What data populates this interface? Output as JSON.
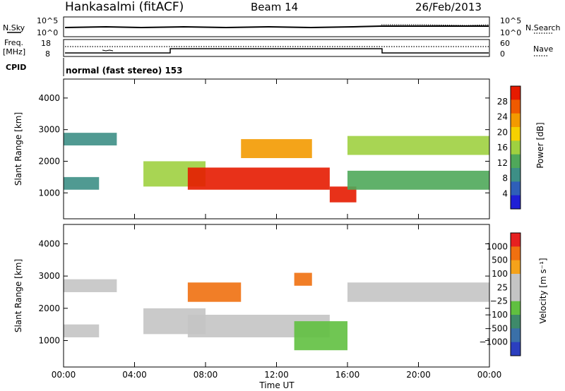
{
  "header": {
    "station": "Hankasalmi (fitACF)",
    "beam": "Beam 14",
    "date": "26/Feb/2013"
  },
  "status_panels": {
    "nsky_label": "N.Sky",
    "nsky_ticks": [
      "10^5",
      "10^0"
    ],
    "nsearch_label": "N.Search",
    "nsearch_ticks": [
      "10^5",
      "10^0"
    ],
    "freq_label": "Freq.",
    "freq_unit": "[MHz]",
    "freq_ticks": [
      "18",
      "8"
    ],
    "nave_label": "Nave",
    "nave_ticks": [
      "60",
      "0"
    ],
    "cpid_label": "CPID",
    "cpid_text": "normal (fast stereo) 153"
  },
  "colors": {
    "power_scale": [
      "#1f1fd6",
      "#2f5fb8",
      "#3d8f86",
      "#4fa85a",
      "#9fd040",
      "#f6d000",
      "#f39a00",
      "#ef5a00",
      "#e61b00"
    ],
    "velocity_scale": [
      "#2b3fbf",
      "#3a70a8",
      "#3e8a6a",
      "#60c040",
      "#c4c4c4",
      "#c4c4c4",
      "#f5a21a",
      "#f07010",
      "#e62020"
    ],
    "gray": "#c8c8c0"
  },
  "chart_data": [
    {
      "type": "heatmap",
      "name": "Power panel",
      "xlabel": "",
      "ylabel": "Slant Range [km]",
      "x_ticks": [
        "00:00",
        "04:00",
        "08:00",
        "12:00",
        "16:00",
        "20:00",
        "00:00"
      ],
      "xlim_hours": [
        0,
        24
      ],
      "y_ticks": [
        "4000",
        "3000",
        "2000",
        "1000"
      ],
      "ylim": [
        180,
        4600
      ],
      "colorbar_label": "Power [dB]",
      "colorbar_ticks": [
        "28",
        "24",
        "20",
        "16",
        "12",
        "8",
        "4"
      ],
      "bands": [
        {
          "start_h": 0.0,
          "end_h": 3.0,
          "range_low": 2500,
          "range_high": 2900,
          "level": 2
        },
        {
          "start_h": 0.0,
          "end_h": 2.0,
          "range_low": 1100,
          "range_high": 1500,
          "level": 2
        },
        {
          "start_h": 4.5,
          "end_h": 8.0,
          "range_low": 1200,
          "range_high": 2000,
          "level": 4
        },
        {
          "start_h": 7.0,
          "end_h": 15.0,
          "range_low": 1100,
          "range_high": 1800,
          "level": 8
        },
        {
          "start_h": 10.0,
          "end_h": 14.0,
          "range_low": 2100,
          "range_high": 2700,
          "level": 6
        },
        {
          "start_h": 15.0,
          "end_h": 16.5,
          "range_low": 700,
          "range_high": 1200,
          "level": 8
        },
        {
          "start_h": 16.0,
          "end_h": 24.0,
          "range_low": 1100,
          "range_high": 1700,
          "level": 3
        },
        {
          "start_h": 16.0,
          "end_h": 24.0,
          "range_low": 2200,
          "range_high": 2800,
          "level": 4
        }
      ]
    },
    {
      "type": "heatmap",
      "name": "Velocity panel",
      "xlabel": "Time UT",
      "ylabel": "Slant Range [km]",
      "x_ticks": [
        "00:00",
        "04:00",
        "08:00",
        "12:00",
        "16:00",
        "20:00",
        "00:00"
      ],
      "xlim_hours": [
        0,
        24
      ],
      "y_ticks": [
        "4000",
        "3000",
        "2000",
        "1000"
      ],
      "ylim": [
        180,
        4600
      ],
      "colorbar_label": "Velocity [m s⁻¹]",
      "colorbar_ticks": [
        "1000",
        "500",
        "100",
        "25",
        "−25",
        "−100",
        "−500",
        "−1000"
      ],
      "bands": [
        {
          "start_h": 0.0,
          "end_h": 3.0,
          "range_low": 2500,
          "range_high": 2900,
          "level": 4
        },
        {
          "start_h": 0.0,
          "end_h": 2.0,
          "range_low": 1100,
          "range_high": 1500,
          "level": 4
        },
        {
          "start_h": 4.5,
          "end_h": 8.0,
          "range_low": 1200,
          "range_high": 2000,
          "level": 4
        },
        {
          "start_h": 7.0,
          "end_h": 15.0,
          "range_low": 1100,
          "range_high": 1800,
          "level": 4
        },
        {
          "start_h": 7.0,
          "end_h": 10.0,
          "range_low": 2200,
          "range_high": 2800,
          "level": 7
        },
        {
          "start_h": 13.0,
          "end_h": 14.0,
          "range_low": 2700,
          "range_high": 3100,
          "level": 7
        },
        {
          "start_h": 13.0,
          "end_h": 16.0,
          "range_low": 700,
          "range_high": 1600,
          "level": 3
        },
        {
          "start_h": 16.0,
          "end_h": 24.0,
          "range_low": 2200,
          "range_high": 2800,
          "level": 4
        }
      ]
    }
  ]
}
